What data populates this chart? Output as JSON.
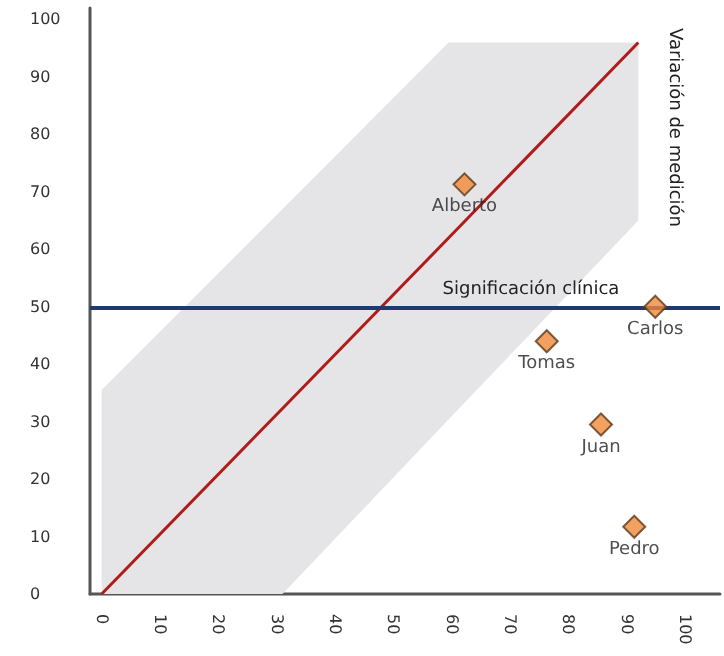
{
  "chart_data": {
    "type": "scatter",
    "xlim": [
      -2,
      106
    ],
    "xticks": [
      0,
      10,
      20,
      30,
      40,
      50,
      60,
      70,
      80,
      90,
      100
    ],
    "ylim": [
      0,
      102
    ],
    "yticks": [
      0,
      10,
      20,
      30,
      40,
      50,
      60,
      70,
      80,
      90,
      100
    ],
    "grid": false,
    "marker": "diamond",
    "series": [
      {
        "type": "line",
        "color": "#b01c1c",
        "x": [
          0,
          31,
          59.5,
          92
        ],
        "values": [
          0,
          32.3,
          62,
          96
        ],
        "lower": [
          0,
          0,
          30.4,
          65
        ],
        "upper": [
          35.5,
          67,
          96,
          96
        ],
        "marker": "none"
      },
      {
        "color": "#f0883a",
        "x": [
          62.2,
          94.9,
          76.3,
          85.6,
          91.3
        ],
        "values": [
          71.3,
          50,
          44,
          29.5,
          11.7
        ]
      }
    ],
    "ref_lines": [
      {
        "axis": "y",
        "value": 50,
        "label": "Significación clínica",
        "color": "#1f3a6e"
      }
    ],
    "annotations": [
      {
        "text": "Alberto",
        "x": 62.2,
        "y": 71.3
      },
      {
        "text": "Carlos",
        "x": 94.9,
        "y": 50
      },
      {
        "text": "Tomas",
        "x": 76.3,
        "y": 44
      },
      {
        "text": "Juan",
        "x": 85.6,
        "y": 29.5
      },
      {
        "text": "Pedro",
        "x": 91.3,
        "y": 11.7
      },
      "Variación de medición"
    ]
  }
}
